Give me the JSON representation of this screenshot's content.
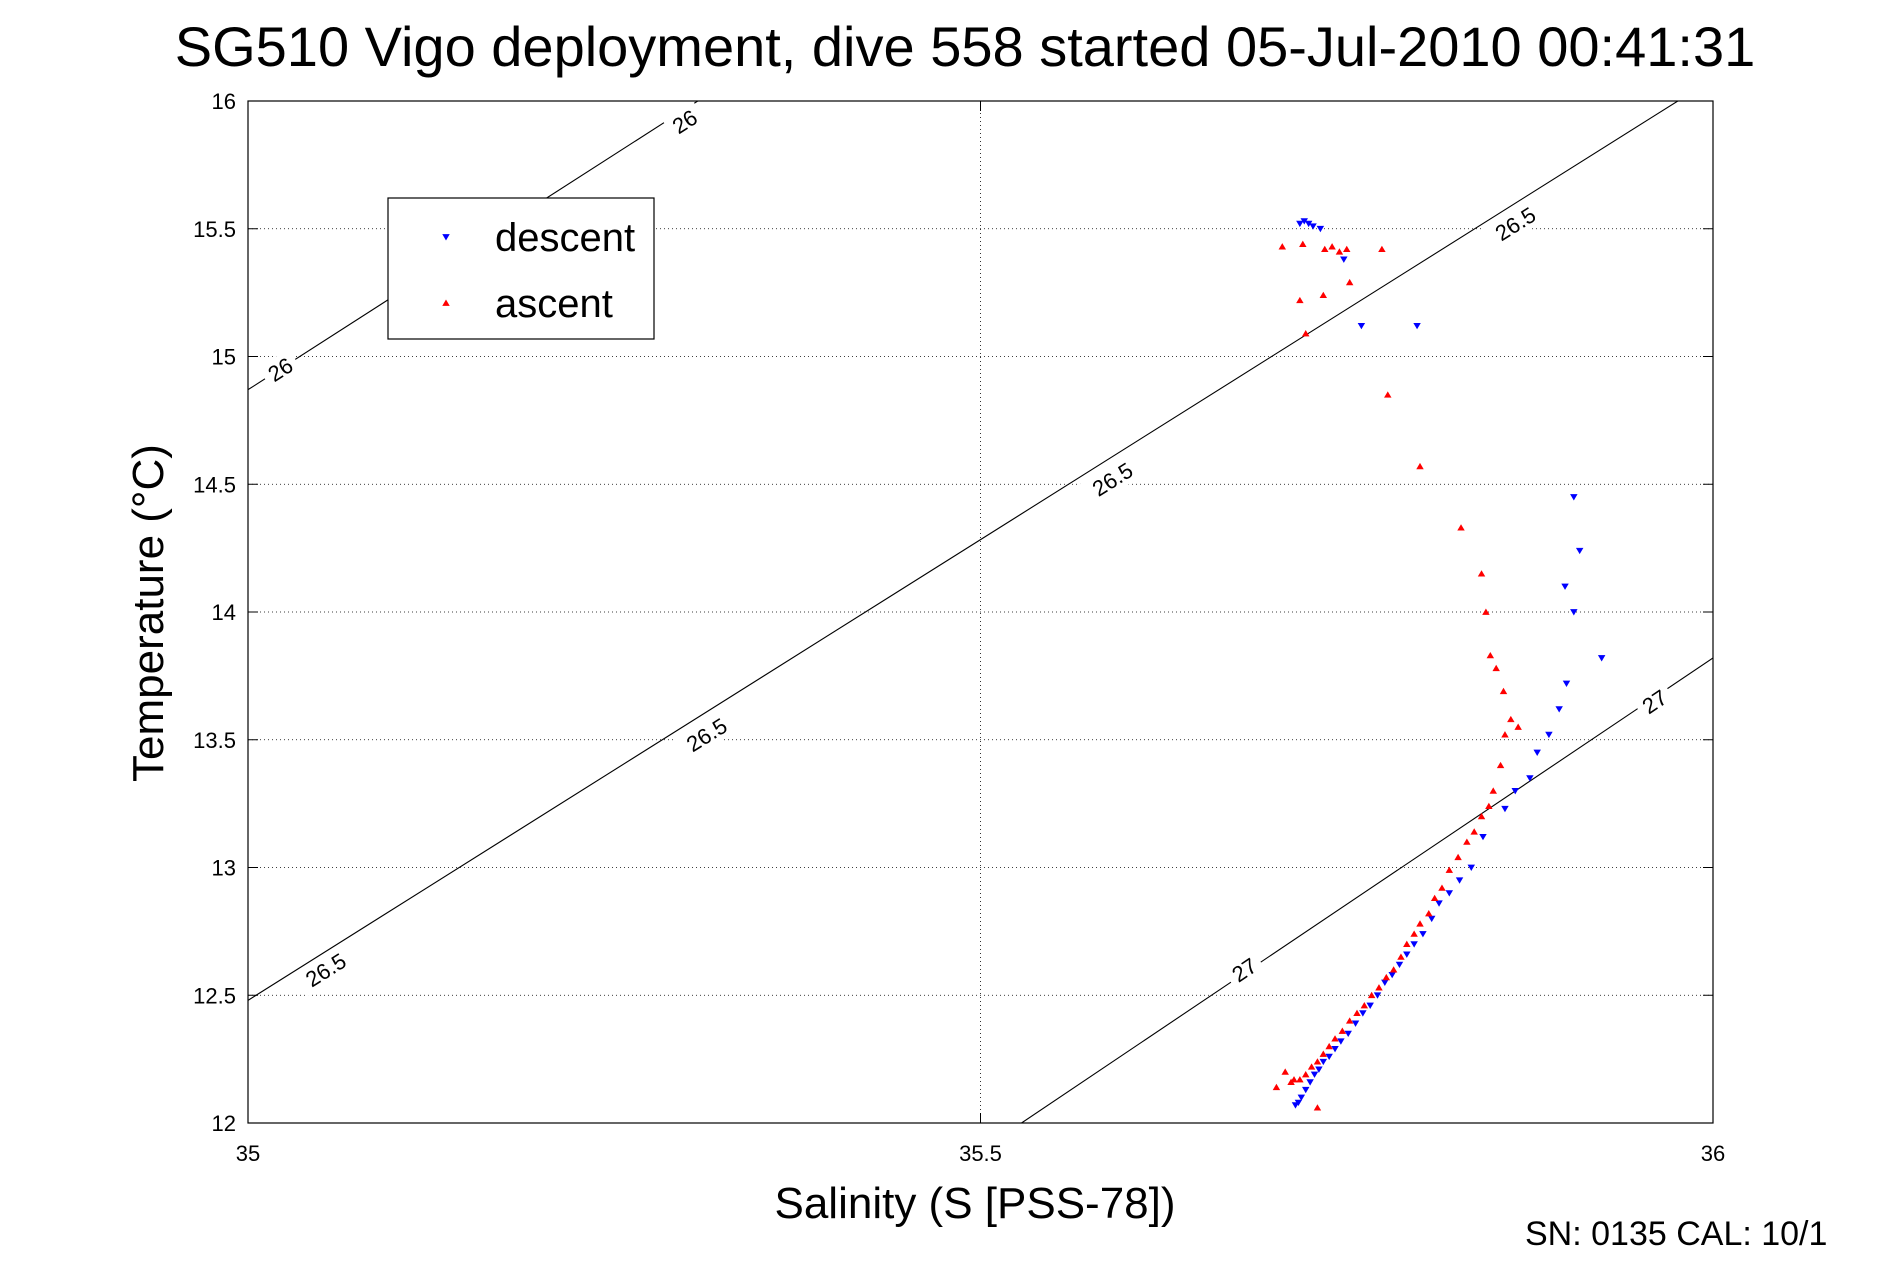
{
  "chart_data": {
    "type": "scatter",
    "title": "SG510 Vigo deployment, dive 558 started 05-Jul-2010 00:41:31",
    "xlabel": "Salinity (S [PSS-78])",
    "ylabel": "Temperature (°C)",
    "xlim": [
      35,
      36
    ],
    "ylim": [
      12,
      16
    ],
    "x_ticks": [
      "35",
      "35.5",
      "36"
    ],
    "x_tick_values": [
      35,
      35.5,
      36
    ],
    "y_ticks": [
      "12",
      "12.5",
      "13",
      "13.5",
      "14",
      "14.5",
      "15",
      "15.5",
      "16"
    ],
    "y_tick_values": [
      12,
      12.5,
      13,
      13.5,
      14,
      14.5,
      15,
      15.5,
      16
    ],
    "grid": true,
    "legend_position": "top-left",
    "contours": [
      {
        "label": "26",
        "points": [
          [
            35.0,
            14.87
          ],
          [
            35.307,
            16.0
          ]
        ],
        "label_positions": [
          [
            35.022,
            14.95
          ],
          [
            35.298,
            15.92
          ]
        ]
      },
      {
        "label": "26.5",
        "points": [
          [
            35.0,
            12.48
          ],
          [
            35.976,
            16.0
          ]
        ],
        "label_positions": [
          [
            35.053,
            12.6
          ],
          [
            35.313,
            13.52
          ],
          [
            35.59,
            14.52
          ],
          [
            35.865,
            15.52
          ]
        ]
      },
      {
        "label": "27",
        "points": [
          [
            35.528,
            12.0
          ],
          [
            36.0,
            13.82
          ]
        ],
        "label_positions": [
          [
            35.68,
            12.6
          ],
          [
            35.96,
            13.65
          ]
        ]
      }
    ],
    "series": [
      {
        "name": "descent",
        "color": "#0000ff",
        "marker": "triangle-down",
        "x": [
          35.718,
          35.721,
          35.724,
          35.727,
          35.732,
          35.748,
          35.76,
          35.798,
          35.905,
          35.909,
          35.899,
          35.905,
          35.924,
          35.9,
          35.895,
          35.888,
          35.88,
          35.875,
          35.865,
          35.858,
          35.843,
          35.835,
          35.827,
          35.82,
          35.813,
          35.808,
          35.802,
          35.796,
          35.791,
          35.786,
          35.781,
          35.776,
          35.771,
          35.766,
          35.761,
          35.756,
          35.751,
          35.746,
          35.742,
          35.738,
          35.734,
          35.731,
          35.728,
          35.725,
          35.722,
          35.719,
          35.717,
          35.715
        ],
        "y": [
          15.52,
          15.53,
          15.52,
          15.51,
          15.5,
          15.38,
          15.12,
          15.12,
          14.45,
          14.24,
          14.1,
          14.0,
          13.82,
          13.72,
          13.62,
          13.52,
          13.45,
          13.35,
          13.3,
          13.23,
          13.12,
          13.0,
          12.95,
          12.9,
          12.86,
          12.8,
          12.74,
          12.7,
          12.66,
          12.62,
          12.58,
          12.55,
          12.5,
          12.46,
          12.43,
          12.39,
          12.35,
          12.32,
          12.29,
          12.26,
          12.24,
          12.21,
          12.19,
          12.16,
          12.13,
          12.1,
          12.08,
          12.07
        ]
      },
      {
        "name": "ascent",
        "color": "#ff0000",
        "marker": "triangle-up",
        "x": [
          35.706,
          35.72,
          35.735,
          35.74,
          35.745,
          35.75,
          35.718,
          35.734,
          35.722,
          35.752,
          35.774,
          35.778,
          35.8,
          35.828,
          35.842,
          35.845,
          35.848,
          35.852,
          35.857,
          35.862,
          35.867,
          35.858,
          35.855,
          35.85,
          35.847,
          35.842,
          35.837,
          35.832,
          35.826,
          35.82,
          35.815,
          35.81,
          35.806,
          35.8,
          35.796,
          35.791,
          35.787,
          35.782,
          35.777,
          35.772,
          35.767,
          35.762,
          35.757,
          35.752,
          35.747,
          35.742,
          35.738,
          35.734,
          35.73,
          35.726,
          35.722,
          35.718,
          35.714,
          35.712,
          35.702,
          35.708,
          35.73
        ],
        "y": [
          15.43,
          15.44,
          15.42,
          15.43,
          15.41,
          15.42,
          15.22,
          15.24,
          15.09,
          15.29,
          15.42,
          14.85,
          14.57,
          14.33,
          14.15,
          14.0,
          13.83,
          13.78,
          13.69,
          13.58,
          13.55,
          13.52,
          13.4,
          13.3,
          13.24,
          13.2,
          13.14,
          13.1,
          13.04,
          12.99,
          12.92,
          12.88,
          12.82,
          12.78,
          12.74,
          12.7,
          12.65,
          12.6,
          12.57,
          12.53,
          12.5,
          12.46,
          12.43,
          12.4,
          12.36,
          12.33,
          12.3,
          12.27,
          12.24,
          12.22,
          12.19,
          12.17,
          12.17,
          12.16,
          12.14,
          12.2,
          12.06
        ]
      }
    ]
  },
  "footer": {
    "text": "SN: 0135  CAL: 10/1"
  }
}
